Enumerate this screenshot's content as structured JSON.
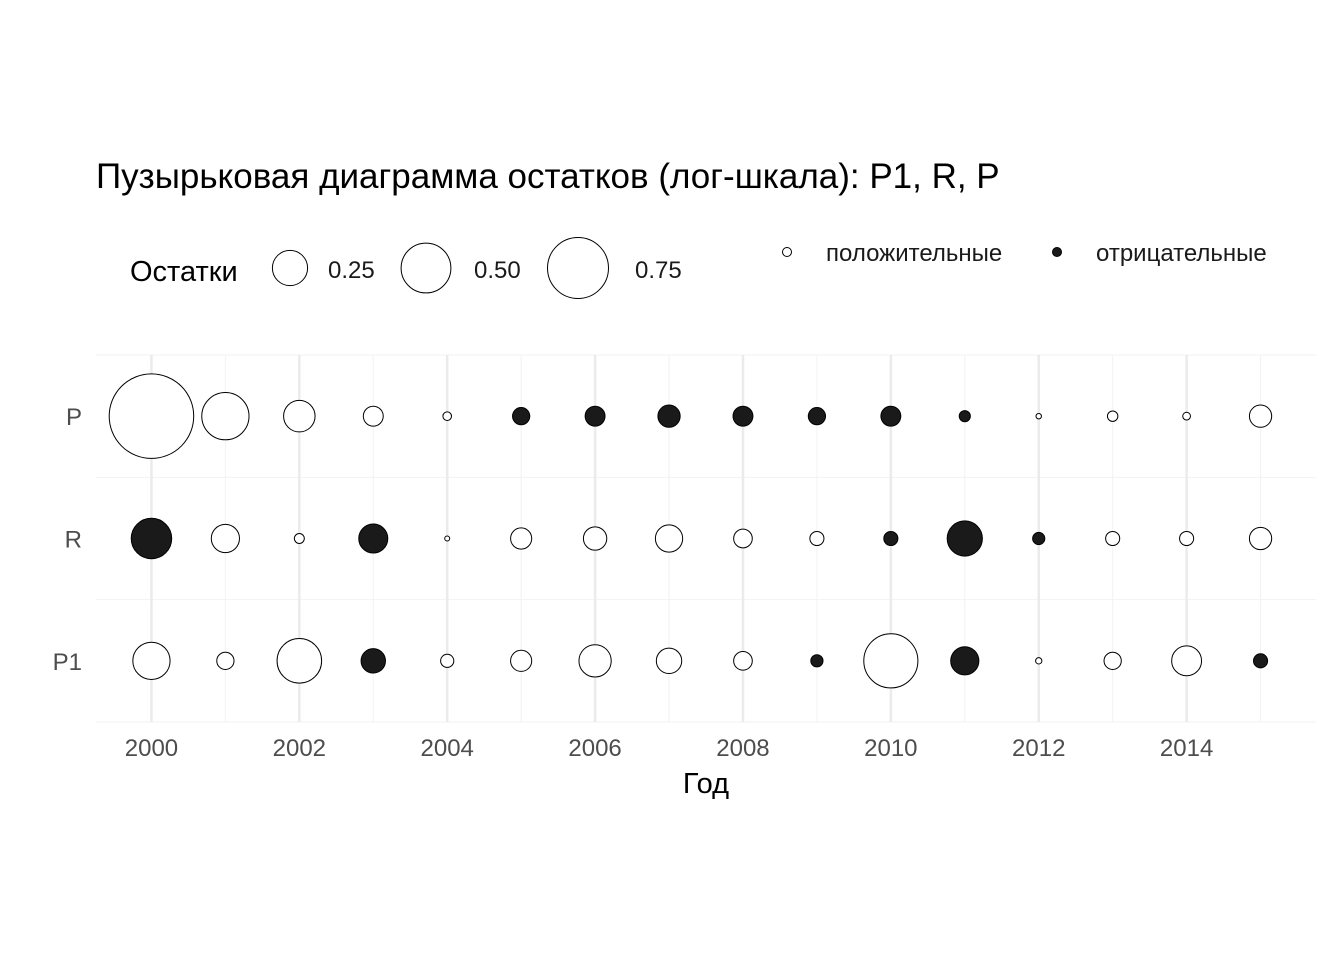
{
  "chart_data": {
    "type": "scatter",
    "subtype": "bubble",
    "title": "Пузырьковая диаграмма остатков (лог-шкала): P1, R, P",
    "xlabel": "Год",
    "ylabel": "",
    "x": [
      2000,
      2001,
      2002,
      2003,
      2004,
      2005,
      2006,
      2007,
      2008,
      2009,
      2010,
      2011,
      2012,
      2013,
      2014,
      2015
    ],
    "x_ticks": [
      2000,
      2002,
      2004,
      2006,
      2008,
      2010,
      2012,
      2014
    ],
    "xlim": [
      1999.25,
      2015.75
    ],
    "categories": [
      "P1",
      "R",
      "P"
    ],
    "size_legend": {
      "title": "Остатки",
      "breaks": [
        0.25,
        0.5,
        0.75
      ],
      "labels": [
        "0.25",
        "0.50",
        "0.75"
      ]
    },
    "sign_legend": {
      "positive_label": "положительные",
      "negative_label": "отрицательные"
    },
    "grid": true,
    "legend_position": "top",
    "colors": {
      "positive_fill": "#ffffff",
      "negative_fill": "#1a1a1a",
      "stroke": "#000000",
      "grid_major": "#ebebeb",
      "grid_minor": "#f2f2f2"
    },
    "series": [
      {
        "name": "P1",
        "values": [
          0.28,
          0.06,
          0.4,
          -0.12,
          0.035,
          0.09,
          0.21,
          0.13,
          0.07,
          -0.03,
          0.59,
          -0.16,
          0.008,
          0.06,
          0.18,
          -0.04
        ]
      },
      {
        "name": "R",
        "values": [
          -0.33,
          0.16,
          0.02,
          -0.17,
          0.005,
          0.09,
          0.11,
          0.15,
          0.07,
          0.04,
          -0.04,
          -0.25,
          -0.03,
          0.04,
          0.04,
          0.1
        ]
      },
      {
        "name": "P",
        "values": [
          1.44,
          0.45,
          0.2,
          0.08,
          0.015,
          -0.06,
          -0.08,
          -0.1,
          -0.08,
          -0.06,
          -0.08,
          -0.025,
          0.006,
          0.022,
          0.012,
          0.1
        ]
      }
    ]
  }
}
